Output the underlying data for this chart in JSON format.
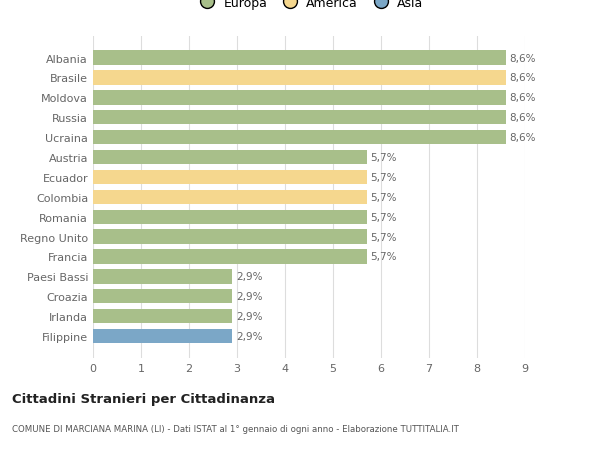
{
  "categories": [
    "Filippine",
    "Irlanda",
    "Croazia",
    "Paesi Bassi",
    "Francia",
    "Regno Unito",
    "Romania",
    "Colombia",
    "Ecuador",
    "Austria",
    "Ucraina",
    "Russia",
    "Moldova",
    "Brasile",
    "Albania"
  ],
  "values": [
    2.9,
    2.9,
    2.9,
    2.9,
    5.7,
    5.7,
    5.7,
    5.7,
    5.7,
    5.7,
    8.6,
    8.6,
    8.6,
    8.6,
    8.6
  ],
  "labels": [
    "2,9%",
    "2,9%",
    "2,9%",
    "2,9%",
    "5,7%",
    "5,7%",
    "5,7%",
    "5,7%",
    "5,7%",
    "5,7%",
    "8,6%",
    "8,6%",
    "8,6%",
    "8,6%",
    "8,6%"
  ],
  "colors": [
    "#7ba7c7",
    "#a8bf8a",
    "#a8bf8a",
    "#a8bf8a",
    "#a8bf8a",
    "#a8bf8a",
    "#a8bf8a",
    "#f5d78e",
    "#f5d78e",
    "#a8bf8a",
    "#a8bf8a",
    "#a8bf8a",
    "#a8bf8a",
    "#f5d78e",
    "#a8bf8a"
  ],
  "legend_labels": [
    "Europa",
    "America",
    "Asia"
  ],
  "legend_colors": [
    "#a8bf8a",
    "#f5d78e",
    "#7ba7c7"
  ],
  "title": "Cittadini Stranieri per Cittadinanza",
  "subtitle": "COMUNE DI MARCIANA MARINA (LI) - Dati ISTAT al 1° gennaio di ogni anno - Elaborazione TUTTITALIA.IT",
  "xlim": [
    0,
    9
  ],
  "xticks": [
    0,
    1,
    2,
    3,
    4,
    5,
    6,
    7,
    8,
    9
  ],
  "background_color": "#ffffff",
  "grid_color": "#dddddd",
  "label_color": "#666666",
  "bar_height": 0.72
}
